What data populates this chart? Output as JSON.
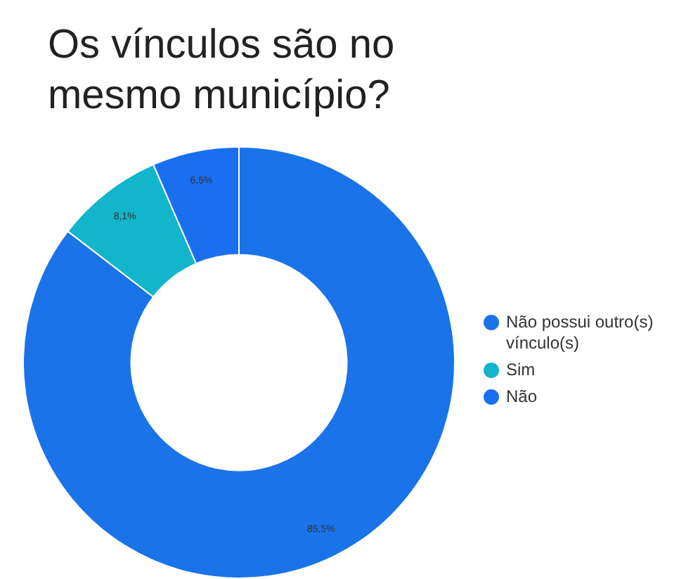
{
  "chart_data": {
    "type": "donut",
    "title": "Os vínculos são no mesmo município?",
    "categories": [
      "Não possui outro(s) vínculo(s)",
      "Sim",
      "Não"
    ],
    "values": [
      85.5,
      8.1,
      6.5
    ],
    "value_labels": [
      "85,5%",
      "8,1%",
      "6,5%"
    ],
    "colors": [
      "#1a73e8",
      "#12b5cb",
      "#1a6ff0"
    ],
    "legend": "right"
  }
}
